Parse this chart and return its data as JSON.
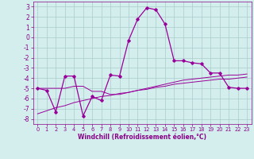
{
  "xlabel": "Windchill (Refroidissement éolien,°C)",
  "background_color": "#d4eeee",
  "grid_color": "#aacccc",
  "line_color": "#990099",
  "x_hours": [
    0,
    1,
    2,
    3,
    4,
    5,
    6,
    7,
    8,
    9,
    10,
    11,
    12,
    13,
    14,
    15,
    16,
    17,
    18,
    19,
    20,
    21,
    22,
    23
  ],
  "y_main": [
    -5.0,
    -5.2,
    -7.3,
    -3.8,
    -3.8,
    -7.7,
    -5.8,
    -6.2,
    -3.7,
    -3.8,
    -0.3,
    1.8,
    2.9,
    2.7,
    1.3,
    -2.3,
    -2.3,
    -2.5,
    -2.6,
    -3.5,
    -3.5,
    -4.9,
    -5.0,
    -5.0
  ],
  "y_smooth1": [
    -5.0,
    -5.0,
    -5.0,
    -5.0,
    -4.8,
    -4.8,
    -5.3,
    -5.3,
    -5.6,
    -5.6,
    -5.4,
    -5.2,
    -5.0,
    -4.8,
    -4.6,
    -4.4,
    -4.2,
    -4.1,
    -4.0,
    -3.9,
    -3.8,
    -3.7,
    -3.7,
    -3.6
  ],
  "y_smooth2": [
    -7.5,
    -7.2,
    -6.9,
    -6.7,
    -6.4,
    -6.2,
    -6.0,
    -5.8,
    -5.7,
    -5.5,
    -5.4,
    -5.2,
    -5.1,
    -4.9,
    -4.8,
    -4.6,
    -4.5,
    -4.4,
    -4.3,
    -4.2,
    -4.1,
    -4.1,
    -4.0,
    -3.9
  ],
  "ylim": [
    -8.5,
    3.5
  ],
  "xlim": [
    -0.5,
    23.5
  ],
  "yticks": [
    -8,
    -7,
    -6,
    -5,
    -4,
    -3,
    -2,
    -1,
    0,
    1,
    2,
    3
  ],
  "xticks": [
    0,
    1,
    2,
    3,
    4,
    5,
    6,
    7,
    8,
    9,
    10,
    11,
    12,
    13,
    14,
    15,
    16,
    17,
    18,
    19,
    20,
    21,
    22,
    23
  ],
  "xtick_labels": [
    "0",
    "1",
    "2",
    "3",
    "4",
    "5",
    "6",
    "7",
    "8",
    "9",
    "10",
    "11",
    "12",
    "13",
    "14",
    "15",
    "16",
    "17",
    "18",
    "19",
    "20",
    "21",
    "22",
    "23"
  ]
}
